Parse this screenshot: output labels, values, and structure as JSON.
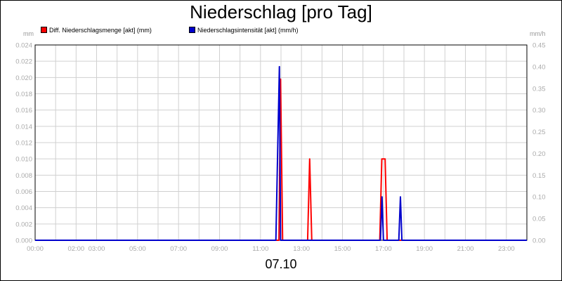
{
  "chart_data": {
    "type": "line",
    "title": "Niederschlag [pro Tag]",
    "date_label": "07.10",
    "y_left_unit": "mm",
    "y_right_unit": "mm/h",
    "y_left_range": [
      0,
      0.024
    ],
    "y_right_range": [
      0,
      0.45
    ],
    "y_left_ticks": [
      "0.000",
      "0.002",
      "0.004",
      "0.006",
      "0.008",
      "0.010",
      "0.012",
      "0.014",
      "0.016",
      "0.018",
      "0.020",
      "0.022",
      "0.024"
    ],
    "y_right_ticks": [
      "0.00",
      "0.05",
      "0.10",
      "0.15",
      "0.20",
      "0.25",
      "0.30",
      "0.35",
      "0.40",
      "0.45"
    ],
    "x_range_hours": [
      0,
      24
    ],
    "x_tick_hours": [
      0,
      2,
      3,
      5,
      7,
      9,
      11,
      13,
      15,
      17,
      19,
      21,
      23
    ],
    "x_tick_labels": [
      "00:00",
      "02:00",
      "03:00",
      "05:00",
      "07:00",
      "09:00",
      "11:00",
      "13:00",
      "15:00",
      "17:00",
      "19:00",
      "21:00",
      "23:00"
    ],
    "grid": true,
    "legend_position": "top-left",
    "series": [
      {
        "name": "Diff. Niederschlagsmenge [akt] (mm)",
        "axis": "left",
        "color": "#ff0000",
        "points": [
          [
            0,
            0
          ],
          [
            11.9,
            0
          ],
          [
            11.98,
            0.0198
          ],
          [
            12.08,
            0
          ],
          [
            13.3,
            0
          ],
          [
            13.4,
            0.01
          ],
          [
            13.5,
            0
          ],
          [
            16.82,
            0
          ],
          [
            16.92,
            0.01
          ],
          [
            17.08,
            0.01
          ],
          [
            17.18,
            0
          ],
          [
            24,
            0
          ]
        ]
      },
      {
        "name": "Niederschlagsintensität [akt] (mm/h)",
        "axis": "right",
        "color": "#0000cc",
        "points": [
          [
            0,
            0
          ],
          [
            11.75,
            0
          ],
          [
            11.92,
            0.4
          ],
          [
            11.98,
            0
          ],
          [
            16.85,
            0
          ],
          [
            16.93,
            0.1
          ],
          [
            17.0,
            0
          ],
          [
            17.75,
            0
          ],
          [
            17.83,
            0.1
          ],
          [
            17.9,
            0
          ],
          [
            24,
            0
          ]
        ]
      }
    ]
  }
}
